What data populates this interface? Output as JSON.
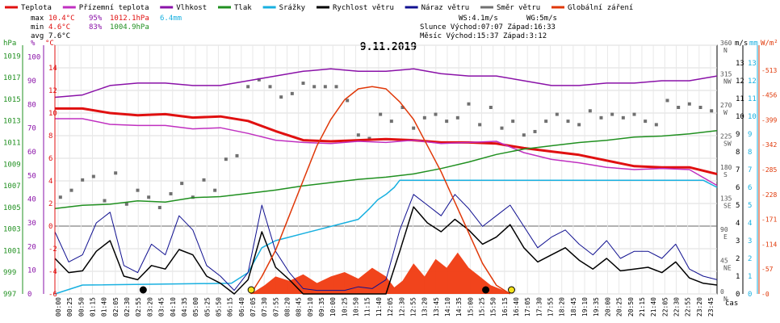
{
  "legend": [
    {
      "label": "Teplota",
      "color": "#e01010"
    },
    {
      "label": "Přízemní teplota",
      "color": "#c030c0"
    },
    {
      "label": "Vlhkost",
      "color": "#8a12a8"
    },
    {
      "label": "Tlak",
      "color": "#209020"
    },
    {
      "label": "Srážky",
      "color": "#18b0e0"
    },
    {
      "label": "Rychlost větru",
      "color": "#000000"
    },
    {
      "label": "Náraz větru",
      "color": "#101090"
    },
    {
      "label": "Směr větru",
      "color": "#707070"
    },
    {
      "label": "Globální záření",
      "color": "#e03808"
    }
  ],
  "stats": {
    "max": {
      "label": "max",
      "temp": "10.4°C",
      "hum": "95%",
      "press": "1012.1hPa",
      "rain": "6.4mm"
    },
    "min": {
      "label": "min",
      "temp": "4.6°C",
      "hum": "83%",
      "press": "1004.9hPa"
    },
    "avg": {
      "label": "avg",
      "temp": "7.6°C"
    }
  },
  "info": {
    "ws": "WS:4.1m/s",
    "wg": "WG:5m/s",
    "sun": "Slunce Východ:07:07  Západ:16:33",
    "moon": "Měsíc  Východ:15:37  Západ:3:12"
  },
  "title": "9.11.2019",
  "axis_units": {
    "hpa": "hPa",
    "pct": "%",
    "degc": "°C",
    "ms": "m/s",
    "mm": "mm",
    "wm2": "W/m²",
    "cas": "čas"
  },
  "chart_data": {
    "type": "line",
    "title": "9.11.2019",
    "xlabel": "čas",
    "x_ticks": [
      "00:00",
      "00:25",
      "00:50",
      "01:15",
      "01:40",
      "02:05",
      "02:30",
      "02:55",
      "03:20",
      "03:45",
      "04:10",
      "04:35",
      "05:00",
      "05:25",
      "05:50",
      "06:15",
      "06:40",
      "07:05",
      "07:30",
      "07:55",
      "08:20",
      "08:45",
      "09:10",
      "09:35",
      "10:00",
      "10:25",
      "10:50",
      "11:15",
      "11:40",
      "12:05",
      "12:30",
      "12:55",
      "13:20",
      "13:45",
      "14:10",
      "14:35",
      "15:00",
      "15:25",
      "15:50",
      "16:15",
      "16:40",
      "17:05",
      "17:30",
      "17:55",
      "18:20",
      "18:45",
      "19:10",
      "19:35",
      "20:00",
      "20:25",
      "20:50",
      "21:15",
      "21:40",
      "22:05",
      "22:30",
      "22:55",
      "23:20",
      "23:45"
    ],
    "axes": {
      "pressure_hpa": {
        "range": [
          997,
          1020
        ],
        "ticks": [
          "997",
          "999",
          "1001",
          "1003",
          "1005",
          "1007",
          "1009",
          "1011",
          "1013",
          "1015",
          "1017",
          "1019"
        ]
      },
      "humidity_pct": {
        "range": [
          0,
          105
        ],
        "ticks": [
          "0",
          "10",
          "20",
          "30",
          "40",
          "50",
          "60",
          "70",
          "80",
          "90",
          "100"
        ]
      },
      "temperature_c": {
        "range": [
          -6,
          16
        ],
        "ticks": [
          "-6",
          "-4",
          "-2",
          "0",
          "2",
          "4",
          "6",
          "8",
          "10",
          "12",
          "14"
        ]
      },
      "wind_dir_deg": {
        "range": [
          0,
          360
        ],
        "ticks": [
          {
            "v": "0",
            "d": "N"
          },
          {
            "v": "45",
            "d": "NE"
          },
          {
            "v": "90",
            "d": "E"
          },
          {
            "v": "135",
            "d": "SE"
          },
          {
            "v": "180",
            "d": "S"
          },
          {
            "v": "225",
            "d": "SW"
          },
          {
            "v": "270",
            "d": "W"
          },
          {
            "v": "315",
            "d": "NW"
          },
          {
            "v": "360",
            "d": "N"
          }
        ]
      },
      "wind_ms": {
        "range": [
          0,
          14
        ],
        "ticks": [
          "0",
          "1",
          "2",
          "3",
          "4",
          "5",
          "6",
          "7",
          "8",
          "9",
          "10",
          "11",
          "12",
          "13"
        ]
      },
      "rain_mm": {
        "range": [
          0,
          14
        ],
        "ticks": [
          "0",
          "1",
          "2",
          "3",
          "4",
          "5",
          "6",
          "7",
          "8",
          "9",
          "10",
          "11",
          "12",
          "13"
        ]
      },
      "radiation_wm2": {
        "range": [
          0,
          570
        ],
        "ticks": [
          "0",
          "57",
          "114",
          "171",
          "228",
          "285",
          "342",
          "399",
          "456",
          "513"
        ]
      }
    },
    "series": [
      {
        "name": "Teplota",
        "axis": "temperature_c",
        "x": [
          0,
          1,
          2,
          3,
          4,
          5,
          6,
          7,
          8,
          9,
          10,
          11,
          12,
          13,
          14,
          15,
          16,
          17,
          18,
          19,
          20,
          21,
          22,
          23,
          24
        ],
        "values": [
          10.4,
          10.4,
          10.0,
          9.8,
          9.9,
          9.6,
          9.7,
          9.3,
          8.4,
          7.6,
          7.5,
          7.6,
          7.7,
          7.6,
          7.4,
          7.4,
          7.3,
          6.9,
          6.6,
          6.3,
          5.8,
          5.3,
          5.2,
          5.2,
          4.6
        ]
      },
      {
        "name": "Přízemní teplota",
        "axis": "temperature_c",
        "x": [
          0,
          1,
          2,
          3,
          4,
          5,
          6,
          7,
          8,
          9,
          10,
          11,
          12,
          13,
          14,
          15,
          16,
          17,
          18,
          19,
          20,
          21,
          22,
          23,
          24
        ],
        "values": [
          9.5,
          9.5,
          9.0,
          8.9,
          8.9,
          8.6,
          8.7,
          8.2,
          7.6,
          7.4,
          7.3,
          7.5,
          7.4,
          7.6,
          7.3,
          7.4,
          7.5,
          6.5,
          5.9,
          5.6,
          5.2,
          5.0,
          5.1,
          5.0,
          3.6
        ]
      },
      {
        "name": "Vlhkost",
        "axis": "humidity_pct",
        "x": [
          0,
          1,
          2,
          3,
          4,
          5,
          6,
          7,
          8,
          9,
          10,
          11,
          12,
          13,
          14,
          15,
          16,
          17,
          18,
          19,
          20,
          21,
          22,
          23,
          24
        ],
        "values": [
          83,
          84,
          88,
          89,
          89,
          88,
          88,
          90,
          92,
          94,
          95,
          94,
          94,
          95,
          93,
          92,
          92,
          90,
          88,
          88,
          89,
          89,
          90,
          90,
          92
        ]
      },
      {
        "name": "Tlak",
        "axis": "pressure_hpa",
        "x": [
          0,
          1,
          2,
          3,
          4,
          5,
          6,
          7,
          8,
          9,
          10,
          11,
          12,
          13,
          14,
          15,
          16,
          17,
          18,
          19,
          20,
          21,
          22,
          23,
          24
        ],
        "values": [
          1004.9,
          1005.2,
          1005.3,
          1005.6,
          1005.5,
          1005.9,
          1006.0,
          1006.3,
          1006.6,
          1007.0,
          1007.3,
          1007.6,
          1007.8,
          1008.1,
          1008.6,
          1009.2,
          1009.9,
          1010.4,
          1010.7,
          1011.0,
          1011.2,
          1011.5,
          1011.6,
          1011.8,
          1012.1
        ]
      },
      {
        "name": "Srážky",
        "axis": "rain_mm",
        "x": [
          0,
          1,
          6.4,
          7.0,
          7.5,
          8.0,
          8.5,
          9.0,
          9.5,
          10.0,
          10.5,
          11.0,
          11.4,
          11.7,
          12.0,
          12.3,
          12.5,
          13,
          14,
          15,
          16,
          17,
          18,
          19,
          20,
          21,
          22,
          23,
          23.5,
          24
        ],
        "values": [
          0,
          0.5,
          0.6,
          1.2,
          2.6,
          3.0,
          3.2,
          3.4,
          3.6,
          3.8,
          4.0,
          4.2,
          4.8,
          5.3,
          5.6,
          6.0,
          6.4,
          6.4,
          6.4,
          6.4,
          6.4,
          6.4,
          6.4,
          6.4,
          6.4,
          6.4,
          6.4,
          6.4,
          6.4,
          6.0
        ]
      },
      {
        "name": "Rychlost větru",
        "axis": "wind_ms",
        "x": [
          0,
          0.5,
          1,
          1.5,
          2,
          2.5,
          3,
          3.5,
          4,
          4.5,
          5,
          5.5,
          6,
          6.5,
          7,
          7.5,
          8,
          8.5,
          9,
          9.5,
          10,
          10.5,
          11,
          11.5,
          12,
          12.5,
          13,
          13.5,
          14,
          14.5,
          15,
          15.5,
          16,
          16.5,
          17,
          17.5,
          18,
          18.5,
          19,
          19.5,
          20,
          20.5,
          21,
          21.5,
          22,
          22.5,
          23,
          23.5,
          24
        ],
        "values": [
          2,
          1.2,
          1.3,
          2.4,
          3.0,
          1.0,
          0.8,
          1.6,
          1.4,
          2.5,
          2.2,
          1.0,
          0.6,
          0,
          0.8,
          3.5,
          1.5,
          0.8,
          0,
          0,
          0,
          0,
          0,
          0,
          0,
          2.4,
          4.9,
          4.0,
          3.5,
          4.2,
          3.6,
          2.8,
          3.2,
          3.9,
          2.6,
          1.8,
          2.2,
          2.6,
          1.9,
          1.4,
          2.0,
          1.3,
          1.4,
          1.5,
          1.2,
          1.8,
          0.9,
          0.6,
          0.5
        ]
      },
      {
        "name": "Náraz větru",
        "axis": "wind_ms",
        "x": [
          0,
          0.5,
          1,
          1.5,
          2,
          2.5,
          3,
          3.5,
          4,
          4.5,
          5,
          5.5,
          6,
          6.5,
          7,
          7.5,
          8,
          8.5,
          9,
          9.5,
          10,
          10.5,
          11,
          11.5,
          12,
          12.5,
          13,
          13.5,
          14,
          14.5,
          15,
          15.5,
          16,
          16.5,
          17,
          17.5,
          18,
          18.5,
          19,
          19.5,
          20,
          20.5,
          21,
          21.5,
          22,
          22.5,
          23,
          23.5,
          24
        ],
        "values": [
          3.5,
          1.8,
          2.2,
          4.0,
          4.6,
          1.6,
          1.2,
          2.8,
          2.2,
          4.4,
          3.6,
          1.6,
          1.0,
          0.2,
          1.2,
          5.0,
          2.4,
          1.2,
          0.3,
          0.2,
          0.2,
          0.2,
          0.4,
          0.3,
          0.8,
          3.6,
          5.6,
          5.0,
          4.4,
          5.6,
          4.8,
          3.8,
          4.4,
          5.0,
          3.8,
          2.6,
          3.2,
          3.6,
          2.8,
          2.2,
          3.0,
          2.0,
          2.4,
          2.4,
          2.0,
          2.8,
          1.4,
          1.0,
          0.8
        ]
      },
      {
        "name": "Globální záření",
        "axis": "radiation_wm2",
        "x": [
          7.1,
          7.5,
          8,
          8.5,
          9,
          9.5,
          10,
          10.5,
          11,
          11.5,
          12,
          12.5,
          13,
          13.5,
          14,
          14.5,
          15,
          15.5,
          16,
          16.5
        ],
        "values": [
          0,
          40,
          100,
          180,
          260,
          340,
          400,
          445,
          470,
          475,
          470,
          440,
          400,
          340,
          280,
          210,
          140,
          70,
          20,
          0
        ]
      },
      {
        "name": "Globální záření (měřené)",
        "axis": "radiation_wm2",
        "x": [
          7.1,
          7.6,
          8.0,
          8.5,
          9.0,
          9.5,
          10.0,
          10.5,
          11.0,
          11.5,
          12.0,
          12.3,
          12.6,
          13.0,
          13.4,
          13.8,
          14.2,
          14.6,
          15.0,
          15.4,
          15.8,
          16.2,
          16.5
        ],
        "values": [
          0,
          20,
          40,
          30,
          45,
          25,
          40,
          50,
          35,
          60,
          40,
          15,
          30,
          70,
          40,
          80,
          60,
          95,
          60,
          40,
          20,
          10,
          0
        ]
      }
    ],
    "wind_direction_deg": {
      "x": [
        0.2,
        0.6,
        1.0,
        1.4,
        1.8,
        2.2,
        2.6,
        3.0,
        3.4,
        3.8,
        4.2,
        4.6,
        5.0,
        5.4,
        5.8,
        6.2,
        6.6,
        7.0,
        7.4,
        7.8,
        8.2,
        8.6,
        9.0,
        9.4,
        9.8,
        10.2,
        10.6,
        11.0,
        11.4,
        11.8,
        12.2,
        12.6,
        13.0,
        13.4,
        13.8,
        14.2,
        14.6,
        15.0,
        15.4,
        15.8,
        16.2,
        16.6,
        17.0,
        17.4,
        17.8,
        18.2,
        18.6,
        19.0,
        19.4,
        19.8,
        20.2,
        20.6,
        21.0,
        21.4,
        21.8,
        22.2,
        22.6,
        23.0,
        23.4,
        23.8
      ],
      "values": [
        140,
        150,
        165,
        170,
        135,
        175,
        130,
        150,
        140,
        125,
        145,
        160,
        140,
        165,
        150,
        195,
        200,
        300,
        310,
        300,
        285,
        290,
        305,
        300,
        300,
        300,
        280,
        230,
        225,
        260,
        250,
        270,
        240,
        255,
        260,
        250,
        255,
        275,
        245,
        270,
        240,
        250,
        230,
        235,
        250,
        260,
        250,
        245,
        265,
        255,
        260,
        255,
        260,
        250,
        245,
        280,
        270,
        275,
        270,
        265
      ]
    },
    "markers": [
      {
        "type": "moonset",
        "label": "3:12"
      },
      {
        "type": "sunrise",
        "label": "07:07"
      },
      {
        "type": "moonrise",
        "label": "15:37"
      },
      {
        "type": "sunset",
        "label": "16:33"
      }
    ],
    "grid": true,
    "legend_position": "top"
  }
}
